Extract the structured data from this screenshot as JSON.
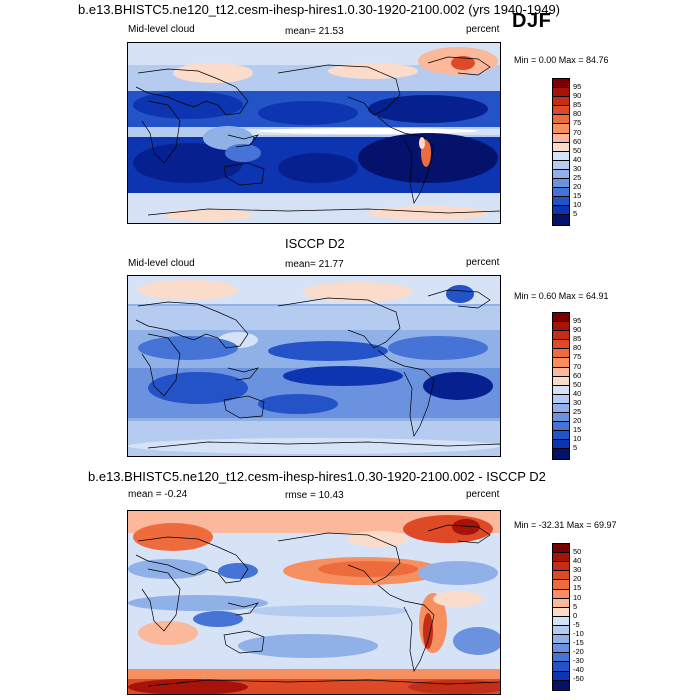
{
  "main_title": "b.e13.BHISTC5.ne120_t12.cesm-ihesp-hires1.0.30-1920-2100.002 (yrs 1940-1949)",
  "season": "DJF",
  "panels": [
    {
      "id": "model",
      "heading": "",
      "left_label": "Mid-level cloud",
      "center_label": "mean=  21.53",
      "right_label": "percent",
      "minmax": "Min =   0.00 Max =  84.76",
      "colorbar_ticks": [
        "95",
        "90",
        "85",
        "80",
        "75",
        "70",
        "60",
        "50",
        "40",
        "30",
        "25",
        "20",
        "15",
        "10",
        "5"
      ]
    },
    {
      "id": "obs",
      "heading": "ISCCP D2",
      "left_label": "Mid-level cloud",
      "center_label": "mean=  21.77",
      "right_label": "percent",
      "minmax": "Min =   0.60 Max =  64.91",
      "colorbar_ticks": [
        "95",
        "90",
        "85",
        "80",
        "75",
        "70",
        "60",
        "50",
        "40",
        "30",
        "25",
        "20",
        "15",
        "10",
        "5"
      ]
    },
    {
      "id": "diff",
      "heading": "b.e13.BHISTC5.ne120_t12.cesm-ihesp-hires1.0.30-1920-2100.002 - ISCCP D2",
      "left_label": "mean =  -0.24",
      "center_label": "rmse =  10.43",
      "right_label": "percent",
      "minmax": "Min = -32.31 Max =  69.97",
      "colorbar_ticks": [
        "50",
        "40",
        "30",
        "20",
        "15",
        "10",
        "5",
        "0",
        "-5",
        "-10",
        "-15",
        "-20",
        "-30",
        "-40",
        "-50"
      ]
    }
  ],
  "colors": {
    "seq_scale": [
      "#7a0000",
      "#a51309",
      "#c42d16",
      "#dd4a25",
      "#ee6b3d",
      "#f79061",
      "#fbb89a",
      "#fbdccb",
      "#ffffff",
      "#d6e2f6",
      "#b5ccf0",
      "#8fb1e8",
      "#6a92df",
      "#4673d6",
      "#2453c7",
      "#0d35b1",
      "#06208f",
      "#04126b"
    ],
    "div_scale": [
      "#7a0000",
      "#a51309",
      "#c42d16",
      "#dd4a25",
      "#ee6b3d",
      "#f79061",
      "#fbb89a",
      "#fbdccb",
      "#ffffff",
      "#d6e2f6",
      "#b5ccf0",
      "#8fb1e8",
      "#6a92df",
      "#4673d6",
      "#2453c7",
      "#0d35b1",
      "#04126b"
    ]
  }
}
